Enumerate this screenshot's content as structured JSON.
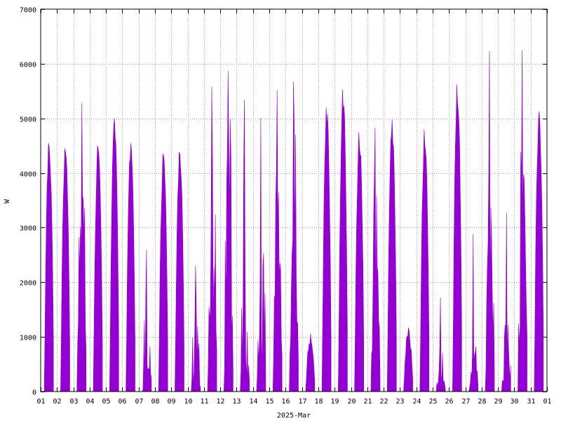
{
  "chart_data": {
    "type": "area",
    "title": "",
    "xlabel": "2025-Mar",
    "ylabel": "W",
    "ylim": [
      0,
      7000
    ],
    "yticks": [
      "0",
      "1000",
      "2000",
      "3000",
      "4000",
      "5000",
      "6000",
      "7000"
    ],
    "xlim": [
      0,
      31
    ],
    "xticks": [
      "01",
      "02",
      "03",
      "04",
      "05",
      "06",
      "07",
      "08",
      "09",
      "10",
      "11",
      "12",
      "13",
      "14",
      "15",
      "16",
      "17",
      "18",
      "19",
      "20",
      "21",
      "22",
      "23",
      "24",
      "25",
      "26",
      "27",
      "28",
      "29",
      "30",
      "31",
      "01"
    ],
    "grid": true,
    "series_color": "#9400d3",
    "days": [
      {
        "day": "01",
        "peak": 4550,
        "pattern": "sunny"
      },
      {
        "day": "02",
        "peak": 4450,
        "pattern": "sunny"
      },
      {
        "day": "03",
        "peak": 5280,
        "pattern": "mixed"
      },
      {
        "day": "04",
        "peak": 4500,
        "pattern": "sunny"
      },
      {
        "day": "05",
        "peak": 5000,
        "pattern": "sunny"
      },
      {
        "day": "06",
        "peak": 4550,
        "pattern": "sunny"
      },
      {
        "day": "07",
        "peak": 2600,
        "pattern": "cloudy"
      },
      {
        "day": "08",
        "peak": 4350,
        "pattern": "sunny"
      },
      {
        "day": "09",
        "peak": 4380,
        "pattern": "sunny"
      },
      {
        "day": "10",
        "peak": 2300,
        "pattern": "cloudy"
      },
      {
        "day": "11",
        "peak": 5580,
        "pattern": "mixed"
      },
      {
        "day": "12",
        "peak": 5870,
        "pattern": "mixed"
      },
      {
        "day": "13",
        "peak": 5340,
        "pattern": "cloudy"
      },
      {
        "day": "14",
        "peak": 5010,
        "pattern": "cloudy"
      },
      {
        "day": "15",
        "peak": 5520,
        "pattern": "mixed"
      },
      {
        "day": "16",
        "peak": 5670,
        "pattern": "mixed"
      },
      {
        "day": "17",
        "peak": 1060,
        "pattern": "overcast"
      },
      {
        "day": "18",
        "peak": 5200,
        "pattern": "sunny"
      },
      {
        "day": "19",
        "peak": 5530,
        "pattern": "sunny"
      },
      {
        "day": "20",
        "peak": 4750,
        "pattern": "sunny"
      },
      {
        "day": "21",
        "peak": 4830,
        "pattern": "mixed"
      },
      {
        "day": "22",
        "peak": 4980,
        "pattern": "sunny"
      },
      {
        "day": "23",
        "peak": 1170,
        "pattern": "overcast"
      },
      {
        "day": "24",
        "peak": 4800,
        "pattern": "sunny"
      },
      {
        "day": "25",
        "peak": 1720,
        "pattern": "cloudy"
      },
      {
        "day": "26",
        "peak": 5620,
        "pattern": "sunny"
      },
      {
        "day": "27",
        "peak": 2880,
        "pattern": "cloudy"
      },
      {
        "day": "28",
        "peak": 6230,
        "pattern": "mixed"
      },
      {
        "day": "29",
        "peak": 3270,
        "pattern": "cloudy"
      },
      {
        "day": "30",
        "peak": 6250,
        "pattern": "mixed"
      },
      {
        "day": "31",
        "peak": 5130,
        "pattern": "sunny"
      }
    ]
  }
}
